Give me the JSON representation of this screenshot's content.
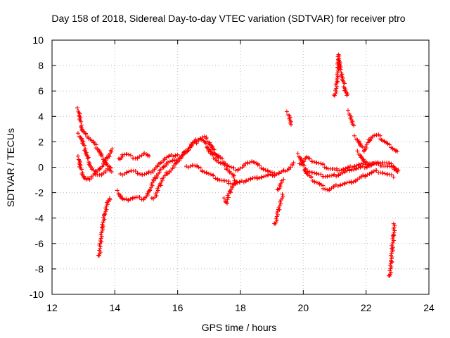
{
  "chart_data": {
    "type": "scatter",
    "title": "Day 158 of 2018, Sidereal Day-to-day VTEC variation (SDTVAR) for receiver ptro",
    "xlabel": "GPS time / hours",
    "ylabel": "SDTVAR / TECUs",
    "xlim": [
      12,
      24
    ],
    "ylim": [
      -10,
      10
    ],
    "xticks": [
      12,
      14,
      16,
      18,
      20,
      22,
      24
    ],
    "yticks": [
      -10,
      -8,
      -6,
      -4,
      -2,
      0,
      2,
      4,
      6,
      8,
      10
    ],
    "xtick_labels": [
      "12",
      "14",
      "16",
      "18",
      "20",
      "22",
      "24"
    ],
    "ytick_labels": [
      "-10",
      "-8",
      "-6",
      "-4",
      "-2",
      "0",
      "2",
      "4",
      "6",
      "8",
      "10"
    ],
    "grid": true,
    "marker": "+",
    "series": [
      {
        "name": "SDTVAR",
        "color": "#ff0000",
        "tracks": [
          [
            [
              12.83,
              4.6
            ],
            [
              12.88,
              4.0
            ],
            [
              12.95,
              3.0
            ],
            [
              13.05,
              2.6
            ],
            [
              13.15,
              2.4
            ],
            [
              13.3,
              2.0
            ],
            [
              13.45,
              1.5
            ],
            [
              13.6,
              0.8
            ],
            [
              13.75,
              0.2
            ],
            [
              13.9,
              -0.3
            ]
          ],
          [
            [
              12.85,
              0.8
            ],
            [
              12.9,
              0.0
            ],
            [
              12.98,
              -0.6
            ],
            [
              13.08,
              -1.0
            ],
            [
              13.2,
              -0.9
            ],
            [
              13.35,
              -0.5
            ],
            [
              13.5,
              -0.2
            ],
            [
              13.65,
              0.3
            ],
            [
              13.8,
              0.9
            ],
            [
              13.92,
              1.4
            ]
          ],
          [
            [
              12.85,
              2.6
            ],
            [
              12.95,
              2.2
            ],
            [
              13.05,
              1.4
            ],
            [
              13.15,
              0.6
            ],
            [
              13.25,
              -0.1
            ],
            [
              13.4,
              -0.5
            ],
            [
              13.55,
              -0.6
            ],
            [
              13.7,
              -0.4
            ],
            [
              13.85,
              0.0
            ]
          ],
          [
            [
              13.5,
              -7.0
            ],
            [
              13.55,
              -5.8
            ],
            [
              13.6,
              -4.8
            ],
            [
              13.65,
              -4.0
            ],
            [
              13.72,
              -3.2
            ],
            [
              13.8,
              -2.6
            ],
            [
              13.85,
              -2.4
            ]
          ],
          [
            [
              14.1,
              -1.9
            ],
            [
              14.2,
              -2.4
            ],
            [
              14.3,
              -2.6
            ],
            [
              14.45,
              -2.5
            ],
            [
              14.6,
              -2.4
            ],
            [
              14.75,
              -2.4
            ],
            [
              14.9,
              -2.5
            ],
            [
              15.0,
              -2.3
            ],
            [
              15.1,
              -1.9
            ],
            [
              15.2,
              -1.2
            ],
            [
              15.35,
              -0.6
            ],
            [
              15.5,
              -0.1
            ],
            [
              15.7,
              0.4
            ],
            [
              15.9,
              0.5
            ],
            [
              16.1,
              0.8
            ],
            [
              16.3,
              1.3
            ],
            [
              16.5,
              1.8
            ],
            [
              16.7,
              2.2
            ],
            [
              16.85,
              2.4
            ],
            [
              17.0,
              2.0
            ],
            [
              17.15,
              1.3
            ],
            [
              17.3,
              0.7
            ]
          ],
          [
            [
              14.15,
              0.6
            ],
            [
              14.25,
              1.0
            ],
            [
              14.4,
              1.0
            ],
            [
              14.55,
              0.8
            ],
            [
              14.7,
              0.7
            ],
            [
              14.85,
              0.9
            ],
            [
              15.0,
              1.1
            ],
            [
              15.1,
              0.9
            ]
          ],
          [
            [
              14.2,
              -0.6
            ],
            [
              14.35,
              -0.4
            ],
            [
              14.5,
              -0.3
            ],
            [
              14.7,
              -0.4
            ],
            [
              14.9,
              -0.6
            ],
            [
              15.05,
              -0.5
            ],
            [
              15.2,
              -0.3
            ],
            [
              15.4,
              0.2
            ],
            [
              15.6,
              0.7
            ],
            [
              15.8,
              0.9
            ],
            [
              16.0,
              1.0
            ]
          ],
          [
            [
              15.2,
              -2.5
            ],
            [
              15.3,
              -2.2
            ],
            [
              15.4,
              -1.6
            ],
            [
              15.5,
              -1.0
            ],
            [
              15.65,
              -0.5
            ],
            [
              15.8,
              -0.2
            ],
            [
              15.95,
              0.3
            ],
            [
              16.15,
              0.9
            ],
            [
              16.35,
              1.5
            ],
            [
              16.55,
              2.1
            ],
            [
              16.7,
              2.3
            ],
            [
              16.85,
              2.0
            ],
            [
              17.0,
              1.4
            ],
            [
              17.15,
              0.8
            ],
            [
              17.3,
              0.4
            ],
            [
              17.45,
              0.2
            ],
            [
              17.6,
              -0.2
            ],
            [
              17.75,
              -0.6
            ],
            [
              17.85,
              -1.2
            ]
          ],
          [
            [
              16.3,
              0.0
            ],
            [
              16.45,
              0.2
            ],
            [
              16.6,
              0.1
            ],
            [
              16.75,
              -0.2
            ],
            [
              16.9,
              -0.4
            ],
            [
              17.05,
              -0.6
            ],
            [
              17.2,
              -0.8
            ],
            [
              17.35,
              -1.0
            ],
            [
              17.5,
              -1.1
            ],
            [
              17.65,
              -1.2
            ],
            [
              17.8,
              -1.3
            ],
            [
              18.0,
              -1.2
            ],
            [
              18.2,
              -1.0
            ],
            [
              18.4,
              -0.9
            ],
            [
              18.6,
              -0.8
            ],
            [
              18.8,
              -0.7
            ],
            [
              19.0,
              -0.6
            ],
            [
              19.2,
              -0.5
            ],
            [
              19.4,
              -0.3
            ],
            [
              19.6,
              0.0
            ],
            [
              19.7,
              0.3
            ]
          ],
          [
            [
              17.0,
              1.2
            ],
            [
              17.15,
              1.1
            ],
            [
              17.3,
              0.9
            ],
            [
              17.45,
              0.5
            ],
            [
              17.6,
              0.1
            ],
            [
              17.75,
              -0.1
            ],
            [
              17.9,
              -0.2
            ],
            [
              18.05,
              0.0
            ],
            [
              18.2,
              0.3
            ],
            [
              18.35,
              0.5
            ],
            [
              18.5,
              0.3
            ],
            [
              18.65,
              0.0
            ],
            [
              18.8,
              -0.2
            ],
            [
              18.95,
              -0.4
            ],
            [
              19.1,
              -0.6
            ]
          ],
          [
            [
              17.5,
              -2.5
            ],
            [
              17.55,
              -2.8
            ],
            [
              17.6,
              -2.4
            ],
            [
              17.65,
              -2.0
            ],
            [
              17.72,
              -1.6
            ],
            [
              17.8,
              -1.4
            ],
            [
              17.9,
              -1.2
            ]
          ],
          [
            [
              19.1,
              -4.5
            ],
            [
              19.15,
              -4.0
            ],
            [
              19.2,
              -3.4
            ],
            [
              19.25,
              -3.0
            ],
            [
              19.3,
              -2.6
            ],
            [
              19.35,
              -2.2
            ]
          ],
          [
            [
              19.2,
              -1.8
            ],
            [
              19.25,
              -1.5
            ],
            [
              19.3,
              -1.2
            ],
            [
              19.38,
              -1.0
            ]
          ],
          [
            [
              19.5,
              4.3
            ],
            [
              19.55,
              4.1
            ],
            [
              19.58,
              3.7
            ],
            [
              19.62,
              3.3
            ]
          ],
          [
            [
              19.9,
              0.2
            ],
            [
              20.0,
              0.5
            ],
            [
              20.1,
              0.8
            ],
            [
              20.2,
              0.6
            ],
            [
              20.4,
              0.4
            ],
            [
              20.6,
              0.2
            ],
            [
              20.8,
              -0.1
            ],
            [
              21.0,
              -0.2
            ],
            [
              21.2,
              -0.2
            ],
            [
              21.4,
              -0.1
            ],
            [
              21.6,
              0.1
            ],
            [
              21.8,
              0.2
            ],
            [
              22.0,
              0.3
            ],
            [
              22.2,
              0.3
            ],
            [
              22.4,
              0.2
            ],
            [
              22.6,
              0.1
            ],
            [
              22.8,
              0.0
            ],
            [
              23.0,
              -0.2
            ]
          ],
          [
            [
              19.85,
              1.0
            ],
            [
              19.95,
              0.5
            ],
            [
              20.05,
              -0.2
            ],
            [
              20.15,
              -0.6
            ],
            [
              20.3,
              -1.0
            ],
            [
              20.5,
              -1.3
            ],
            [
              20.65,
              -1.6
            ],
            [
              20.8,
              -1.8
            ],
            [
              20.95,
              -1.6
            ],
            [
              21.1,
              -1.4
            ],
            [
              21.3,
              -1.3
            ],
            [
              21.5,
              -1.2
            ],
            [
              21.7,
              -1.0
            ],
            [
              21.9,
              -0.7
            ],
            [
              22.1,
              -0.5
            ],
            [
              22.3,
              -0.3
            ],
            [
              22.5,
              -0.4
            ],
            [
              22.7,
              -0.6
            ],
            [
              22.85,
              -0.7
            ]
          ],
          [
            [
              20.1,
              -0.2
            ],
            [
              20.3,
              -0.4
            ],
            [
              20.5,
              -0.6
            ],
            [
              20.7,
              -0.7
            ],
            [
              20.9,
              -0.7
            ],
            [
              21.1,
              -0.6
            ],
            [
              21.3,
              -0.4
            ],
            [
              21.5,
              -0.2
            ],
            [
              21.7,
              -0.1
            ],
            [
              21.9,
              0.0
            ],
            [
              22.1,
              0.1
            ],
            [
              22.3,
              0.3
            ],
            [
              22.5,
              0.4
            ],
            [
              22.7,
              0.3
            ],
            [
              22.9,
              0.1
            ],
            [
              23.0,
              -0.4
            ]
          ],
          [
            [
              21.0,
              5.6
            ],
            [
              21.05,
              6.2
            ],
            [
              21.1,
              7.4
            ],
            [
              21.12,
              8.8
            ],
            [
              21.2,
              7.5
            ],
            [
              21.3,
              6.4
            ],
            [
              21.4,
              5.6
            ]
          ],
          [
            [
              21.45,
              4.4
            ],
            [
              21.5,
              4.0
            ],
            [
              21.55,
              3.6
            ],
            [
              21.6,
              3.2
            ]
          ],
          [
            [
              21.65,
              2.4
            ],
            [
              21.75,
              2.1
            ],
            [
              21.85,
              1.6
            ],
            [
              21.95,
              1.3
            ],
            [
              22.05,
              1.9
            ],
            [
              22.15,
              2.3
            ],
            [
              22.25,
              2.5
            ],
            [
              22.4,
              2.5
            ],
            [
              22.5,
              2.2
            ],
            [
              22.6,
              2.0
            ],
            [
              22.75,
              1.7
            ],
            [
              22.9,
              1.4
            ],
            [
              23.0,
              1.2
            ]
          ],
          [
            [
              21.75,
              1.2
            ],
            [
              21.85,
              0.8
            ],
            [
              21.95,
              0.4
            ],
            [
              22.05,
              0.3
            ],
            [
              22.15,
              0.2
            ],
            [
              22.25,
              0.3
            ]
          ],
          [
            [
              22.75,
              -8.6
            ],
            [
              22.8,
              -7.5
            ],
            [
              22.82,
              -6.7
            ],
            [
              22.85,
              -5.9
            ],
            [
              22.88,
              -5.2
            ],
            [
              22.9,
              -4.5
            ]
          ]
        ]
      }
    ]
  }
}
